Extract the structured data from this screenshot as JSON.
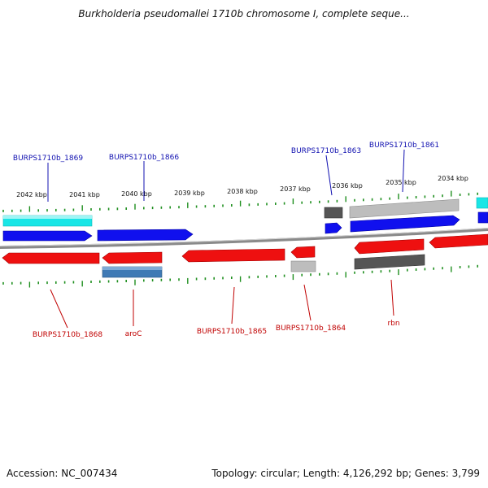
{
  "title": "Burkholderia pseudomallei 1710b chromosome I, complete seque...",
  "footer": {
    "accession": "Accession: NC_007434",
    "summary": "Topology: circular; Length: 4,126,292 bp; Genes: 3,799"
  },
  "colors": {
    "forward_gene": "#1010ee",
    "reverse_gene": "#ee1010",
    "label_forward": "#1010b0",
    "label_reverse": "#c00000",
    "tick": "#1f8f1f",
    "cyan_feature": "#19e6e6",
    "steel_feature": "#3f7ab5",
    "gray_light": "#bdbdbd",
    "gray_dark": "#555555",
    "backbone": "#8a8a8a"
  },
  "ruler_labels": [
    "2042 kbp",
    "2041 kbp",
    "2040 kbp",
    "2039 kbp",
    "2038 kbp",
    "2037 kbp",
    "2036 kbp",
    "2035 kbp",
    "2034 kbp"
  ],
  "top_gene_labels": [
    "BURPS1710b_1869",
    "BURPS1710b_1866",
    "BURPS1710b_1863",
    "BURPS1710b_1861"
  ],
  "bottom_gene_labels": [
    "BURPS1710b_1868",
    "aroC",
    "BURPS1710b_1865",
    "BURPS1710b_1864",
    "rbn"
  ]
}
